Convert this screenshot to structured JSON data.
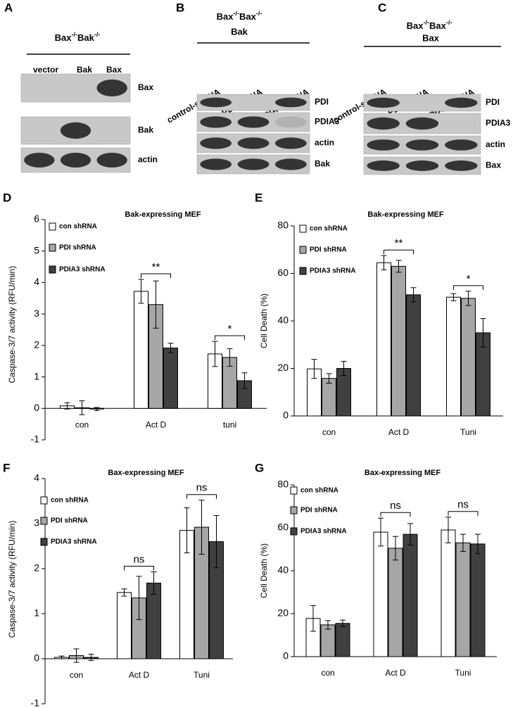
{
  "blot_panels": [
    {
      "label": "A",
      "genotype": [
        {
          "gene": "Bax",
          "sup": "-/-"
        },
        {
          "gene": "Bak",
          "sup": "-/-"
        }
      ],
      "lanes": [
        "vector",
        "Bak",
        "Bax"
      ],
      "rows": [
        "Bax",
        "Bak",
        "actin"
      ]
    },
    {
      "label": "B",
      "genotype": [
        {
          "gene": "Bax",
          "sup": "-/-"
        },
        {
          "gene": "Bax",
          "sup": "-/-"
        }
      ],
      "expressed": "Bak",
      "lanes": [
        "control-shRNA",
        "PDI-shRNA",
        "PDIA3-shRNA"
      ],
      "rows": [
        "PDI",
        "PDIA3",
        "actin",
        "Bak"
      ]
    },
    {
      "label": "C",
      "genotype": [
        {
          "gene": "Bax",
          "sup": "-/-"
        },
        {
          "gene": "Bax",
          "sup": "-/-"
        }
      ],
      "expressed": "Bax",
      "lanes": [
        "control-shRNA",
        "PDI-shRNA",
        "PDIA3-shRNA"
      ],
      "rows": [
        "PDI",
        "PDIA3",
        "actin",
        "Bax"
      ]
    }
  ],
  "chart_data": [
    {
      "type": "bar",
      "panel": "D",
      "title": "Bak-expressing MEF",
      "y_label": "Caspase-3/7 activity (RFU/min)",
      "categories": [
        "con",
        "Act D",
        "tuni"
      ],
      "series": [
        {
          "name": "con shRNA",
          "color": "#ffffff",
          "values": [
            0.08,
            3.72,
            1.73
          ],
          "errors": [
            0.1,
            0.38,
            0.4
          ]
        },
        {
          "name": "PDI shRNA",
          "color": "#a6a6a6",
          "values": [
            0.02,
            3.3,
            1.62
          ],
          "errors": [
            0.22,
            0.75,
            0.28
          ]
        },
        {
          "name": "PDIA3 shRNA",
          "color": "#404040",
          "values": [
            -0.02,
            1.92,
            0.88
          ],
          "errors": [
            0.05,
            0.15,
            0.25
          ]
        }
      ],
      "ylim": [
        -1,
        6
      ],
      "yticks": [
        -1,
        0,
        1,
        2,
        3,
        4,
        5,
        6
      ],
      "annotations": [
        null,
        "**",
        "*"
      ]
    },
    {
      "type": "bar",
      "panel": "E",
      "title": "Bak-expressing MEF",
      "y_label": "Cell Death (%)",
      "categories": [
        "con",
        "Act D",
        "Tuni"
      ],
      "series": [
        {
          "name": "con shRNA",
          "color": "#ffffff",
          "values": [
            19.8,
            64.5,
            50
          ],
          "errors": [
            4,
            3,
            1.5
          ]
        },
        {
          "name": "PDI shRNA",
          "color": "#a6a6a6",
          "values": [
            15.8,
            63,
            49.5
          ],
          "errors": [
            2,
            2.5,
            3
          ]
        },
        {
          "name": "PDIA3 shRNA",
          "color": "#404040",
          "values": [
            20,
            51,
            35
          ],
          "errors": [
            3,
            3,
            6
          ]
        }
      ],
      "ylim": [
        0,
        80
      ],
      "yticks": [
        0,
        20,
        40,
        60,
        80
      ],
      "annotations": [
        null,
        "**",
        "*"
      ]
    },
    {
      "type": "bar",
      "panel": "F",
      "title": "Bax-expressing MEF",
      "y_label": "Caspase-3/7 activity (RFU/min)",
      "categories": [
        "con",
        "Act D",
        "Tuni"
      ],
      "series": [
        {
          "name": "con shRNA",
          "color": "#ffffff",
          "values": [
            0.03,
            1.47,
            2.85
          ],
          "errors": [
            0.03,
            0.08,
            0.5
          ]
        },
        {
          "name": "PDI shRNA",
          "color": "#a6a6a6",
          "values": [
            0.07,
            1.35,
            2.92
          ],
          "errors": [
            0.15,
            0.48,
            0.6
          ]
        },
        {
          "name": "PDIA3 shRNA",
          "color": "#404040",
          "values": [
            0.03,
            1.68,
            2.6
          ],
          "errors": [
            0.07,
            0.25,
            0.58
          ]
        }
      ],
      "ylim": [
        -1,
        4
      ],
      "yticks": [
        -1,
        0,
        1,
        2,
        3,
        4
      ],
      "annotations": [
        null,
        "ns",
        "ns"
      ]
    },
    {
      "type": "bar",
      "panel": "G",
      "title": "Bax-expressing MEF",
      "y_label": "Cell Death (%)",
      "categories": [
        "con",
        "Act D",
        "Tuni"
      ],
      "series": [
        {
          "name": "con shRNA",
          "color": "#ffffff",
          "values": [
            17.8,
            58,
            59
          ],
          "errors": [
            6,
            6.5,
            6
          ]
        },
        {
          "name": "PDI shRNA",
          "color": "#a6a6a6",
          "values": [
            14.8,
            50.5,
            53
          ],
          "errors": [
            2,
            5.5,
            4
          ]
        },
        {
          "name": "PDIA3 shRNA",
          "color": "#404040",
          "values": [
            15.5,
            57,
            52.5
          ],
          "errors": [
            1.5,
            5,
            4.5
          ]
        }
      ],
      "ylim": [
        0,
        80
      ],
      "yticks": [
        0,
        20,
        40,
        60,
        80
      ],
      "annotations": [
        null,
        "ns",
        "ns"
      ]
    }
  ]
}
